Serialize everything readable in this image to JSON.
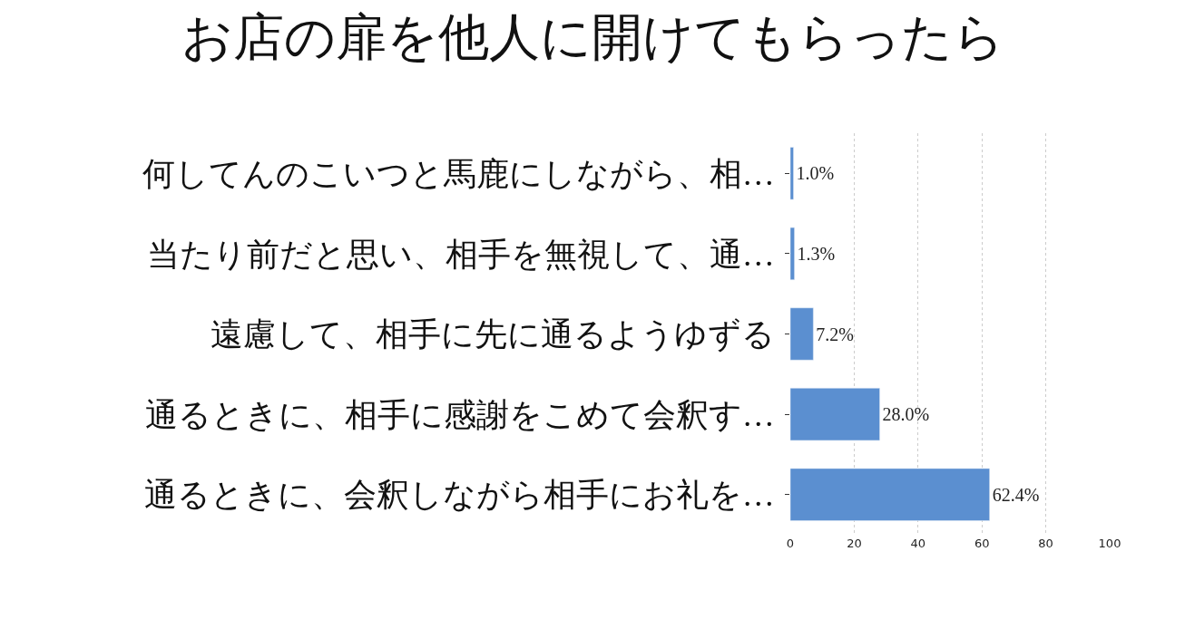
{
  "chart_data": {
    "type": "bar",
    "orientation": "horizontal",
    "title": "お店の扉を他人に開けてもらったら",
    "categories": [
      "何してんのこいつと馬鹿にしながら、相…",
      "当たり前だと思い、相手を無視して、通…",
      "遠慮して、相手に先に通るようゆずる",
      "通るときに、相手に感謝をこめて会釈す…",
      "通るときに、会釈しながら相手にお礼を…"
    ],
    "values": [
      1.0,
      1.3,
      7.2,
      28.0,
      62.4
    ],
    "value_labels": [
      "1.0%",
      "1.3%",
      "7.2%",
      "28.0%",
      "62.4%"
    ],
    "color": "#5b8fd0",
    "xlim": [
      0,
      100
    ],
    "xticks": [
      0,
      20,
      40,
      60,
      80,
      100
    ],
    "grid": "x",
    "legend": false
  }
}
